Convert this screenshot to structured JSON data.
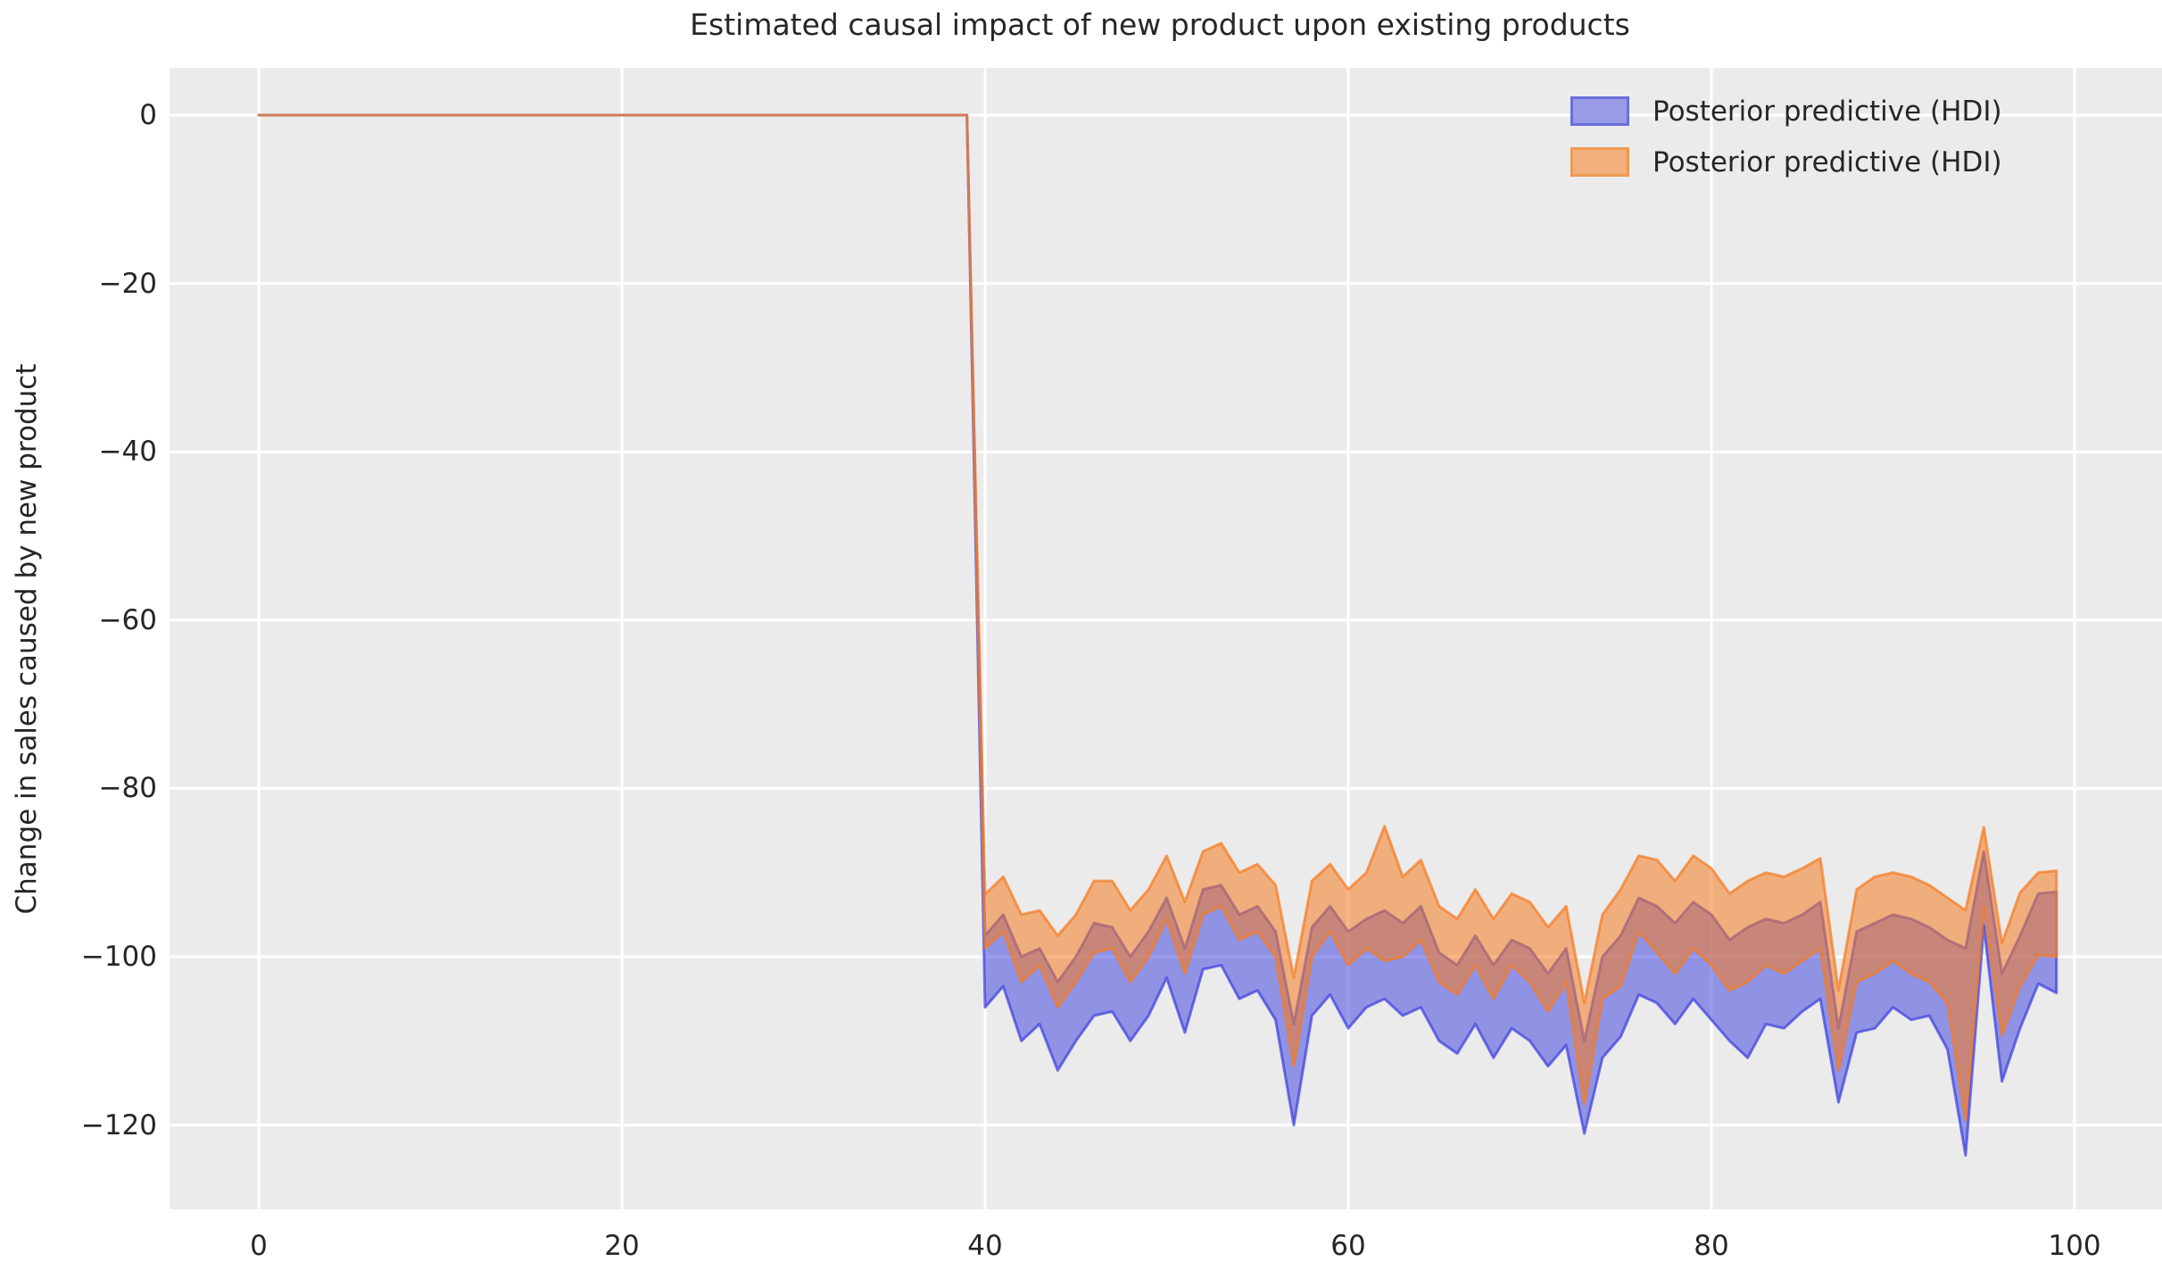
{
  "title": "Estimated causal impact of new product upon existing products",
  "legend": {
    "items": [
      {
        "label": "Posterior predictive (HDI)",
        "series": "blue-hdi",
        "fill": "#999be7",
        "border": "#6a6fdb"
      },
      {
        "label": "Posterior predictive (HDI)",
        "series": "orange-hdi",
        "fill": "#f3b07c",
        "border": "#ef9a52"
      }
    ]
  },
  "style": {
    "plot_bg": "#ebebeb",
    "grid_color": "#ffffff",
    "text_color": "#262626",
    "blue_fill": "rgba(62,66,222,0.52)",
    "blue_edge": "rgba(62,66,222,0.73)",
    "orange_fill": "rgba(245,124,35,0.55)",
    "orange_edge": "rgba(245,124,35,0.73)"
  },
  "chart_data": {
    "type": "area",
    "title": "Estimated causal impact of new product upon existing products",
    "xlabel": "",
    "ylabel": "Change in sales caused by new product",
    "xlim": [
      -5,
      105
    ],
    "ylim": [
      -132.3,
      6.3
    ],
    "grid": true,
    "legend_position": "upper right",
    "x_ticks": [
      0,
      20,
      40,
      60,
      80,
      100
    ],
    "x_tick_labels": [
      "0",
      "20",
      "40",
      "60",
      "80",
      "100"
    ],
    "y_ticks": [
      0,
      -20,
      -40,
      -60,
      -80,
      -100,
      -120
    ],
    "y_tick_labels": [
      "0",
      "−20",
      "−40",
      "−60",
      "−80",
      "−100",
      "−120"
    ],
    "pre_period": {
      "x_start": 0,
      "x_end": 39,
      "value": 0
    },
    "post_period": {
      "x_start": 40,
      "x_step": 1,
      "blue_hdi_upper": [
        -97.5,
        -95,
        -100,
        -99,
        -103,
        -100,
        -96,
        -96.5,
        -100,
        -97,
        -93,
        -99,
        -92,
        -91.5,
        -95,
        -94,
        -97,
        -108,
        -96.5,
        -94,
        -97,
        -95.5,
        -94.5,
        -96,
        -94,
        -99.5,
        -101,
        -97.5,
        -101,
        -98,
        -99,
        -102,
        -99,
        -110,
        -100,
        -97.5,
        -93,
        -94,
        -96,
        -93.5,
        -95,
        -98,
        -96.5,
        -95.5,
        -96,
        -95,
        -93.5,
        -108.5,
        -97,
        -96,
        -95,
        -95.5,
        -96.5,
        -98,
        -99,
        -87.5,
        -102,
        -97.5,
        -92.5,
        -92.3
      ],
      "blue_hdi_lower": [
        -106,
        -103.5,
        -110,
        -108,
        -113.5,
        -110,
        -107,
        -106.5,
        -110,
        -107,
        -102.5,
        -109,
        -101.5,
        -101,
        -105,
        -104,
        -107.5,
        -120,
        -107,
        -104.5,
        -108.5,
        -106,
        -105,
        -107,
        -106,
        -110,
        -111.5,
        -108,
        -112,
        -108.5,
        -110,
        -113,
        -110.5,
        -121,
        -112,
        -109.5,
        -104.5,
        -105.5,
        -108,
        -105,
        -107.5,
        -110,
        -112,
        -108,
        -108.5,
        -106.5,
        -105,
        -117.3,
        -109,
        -108.5,
        -106,
        -107.5,
        -107,
        -111,
        -123.6,
        -96.3,
        -114.8,
        -108.5,
        -103.2,
        -104.3
      ],
      "orange_hdi_upper": [
        -92.6,
        -90.5,
        -95,
        -94.5,
        -97.5,
        -95,
        -91,
        -91,
        -94.5,
        -92,
        -88,
        -93.5,
        -87.5,
        -86.5,
        -90,
        -89,
        -91.5,
        -102.5,
        -91,
        -89,
        -92,
        -90,
        -84.5,
        -90.5,
        -88.5,
        -94,
        -95.5,
        -92,
        -95.5,
        -92.5,
        -93.5,
        -96.5,
        -94,
        -105.5,
        -95,
        -92,
        -88,
        -88.5,
        -91,
        -88,
        -89.5,
        -92.5,
        -91,
        -90,
        -90.5,
        -89.5,
        -88.3,
        -104,
        -92,
        -90.5,
        -90,
        -90.5,
        -91.5,
        -93,
        -94.5,
        -84.6,
        -98.4,
        -92.4,
        -90,
        -89.8
      ],
      "orange_hdi_lower": [
        -99,
        -97,
        -103,
        -101,
        -106,
        -103,
        -99.5,
        -99,
        -103,
        -100,
        -95.5,
        -102,
        -95,
        -94,
        -98,
        -97,
        -100,
        -113,
        -100,
        -97,
        -101,
        -99,
        -100.5,
        -100,
        -98,
        -103,
        -104.5,
        -101,
        -105,
        -101,
        -103,
        -106.5,
        -103,
        -117.5,
        -105,
        -103.5,
        -97,
        -99.5,
        -102,
        -99,
        -101,
        -104,
        -103,
        -101,
        -102,
        -100.5,
        -99,
        -113.5,
        -103,
        -102,
        -100.5,
        -102,
        -103,
        -105.5,
        -119.4,
        -94,
        -109.3,
        -103.5,
        -99.8,
        -100
      ]
    }
  }
}
